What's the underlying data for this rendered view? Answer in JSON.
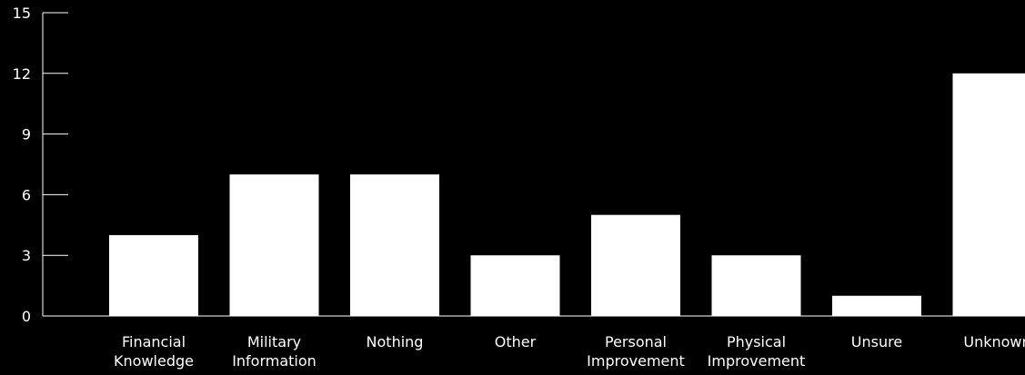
{
  "chart_data": {
    "type": "bar",
    "categories": [
      [
        "Financial",
        "Knowledge"
      ],
      [
        "Military",
        "Information"
      ],
      [
        "Nothing"
      ],
      [
        "Other"
      ],
      [
        "Personal",
        "Improvement"
      ],
      [
        "Physical",
        "Improvement"
      ],
      [
        "Unsure"
      ],
      [
        "Unknown"
      ]
    ],
    "values": [
      4,
      7,
      7,
      3,
      5,
      3,
      1,
      12
    ],
    "ylim": [
      0,
      15
    ],
    "yticks": [
      0,
      3,
      6,
      9,
      12,
      15
    ],
    "grid": false,
    "colors": {
      "background": "#000000",
      "bar": "#ffffff",
      "axis": "#ffffff",
      "text": "#ffffff"
    }
  }
}
